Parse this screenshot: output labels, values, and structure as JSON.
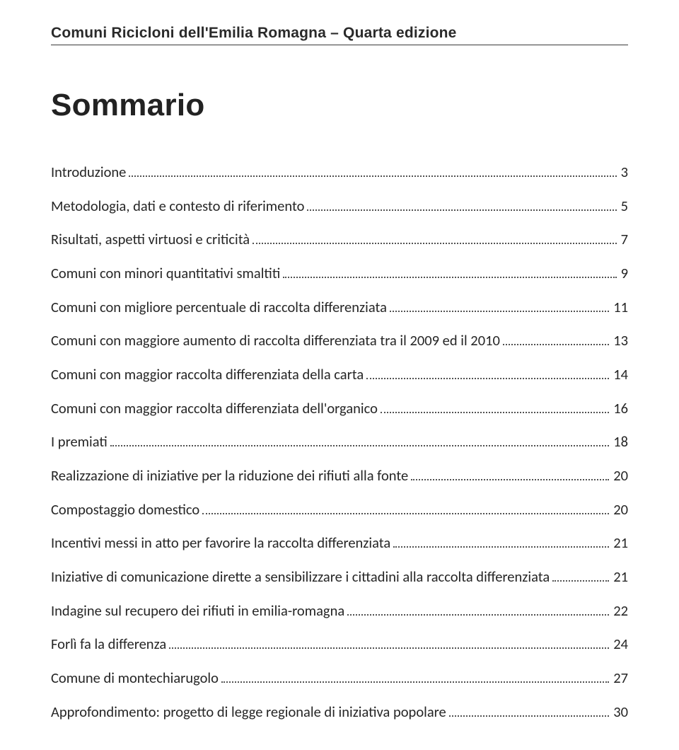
{
  "header": {
    "title": "Comuni Ricicloni dell'Emilia Romagna – Quarta edizione"
  },
  "sommario": {
    "title": "Sommario"
  },
  "toc": [
    {
      "label": "Introduzione",
      "page": "3"
    },
    {
      "label": "Metodologia, dati e contesto di riferimento",
      "page": "5"
    },
    {
      "label": "Risultati, aspetti virtuosi e criticità",
      "page": "7"
    },
    {
      "label": "Comuni con minori quantitativi smaltiti",
      "page": "9"
    },
    {
      "label": "Comuni con migliore percentuale di raccolta differenziata",
      "page": "11"
    },
    {
      "label": "Comuni con maggiore aumento di raccolta differenziata tra il 2009 ed il 2010",
      "page": "13"
    },
    {
      "label": "Comuni con maggior raccolta differenziata della carta",
      "page": "14"
    },
    {
      "label": "Comuni con maggior raccolta differenziata dell'organico",
      "page": "16"
    },
    {
      "label": "I premiati",
      "page": "18"
    },
    {
      "label": "Realizzazione di iniziative per la riduzione dei rifiuti alla fonte",
      "page": "20"
    },
    {
      "label": "Compostaggio domestico",
      "page": "20"
    },
    {
      "label": "Incentivi messi in atto per favorire la raccolta differenziata",
      "page": "21"
    },
    {
      "label": "Iniziative di comunicazione dirette a sensibilizzare i cittadini alla raccolta differenziata",
      "page": "21"
    },
    {
      "label": "Indagine sul recupero dei rifiuti in emilia-romagna",
      "page": "22"
    },
    {
      "label": "Forlì fa la differenza",
      "page": "24"
    },
    {
      "label": "Comune di montechiarugolo",
      "page": "27"
    },
    {
      "label": "Approfondimento: progetto di legge regionale di iniziativa popolare",
      "page": "30"
    }
  ]
}
